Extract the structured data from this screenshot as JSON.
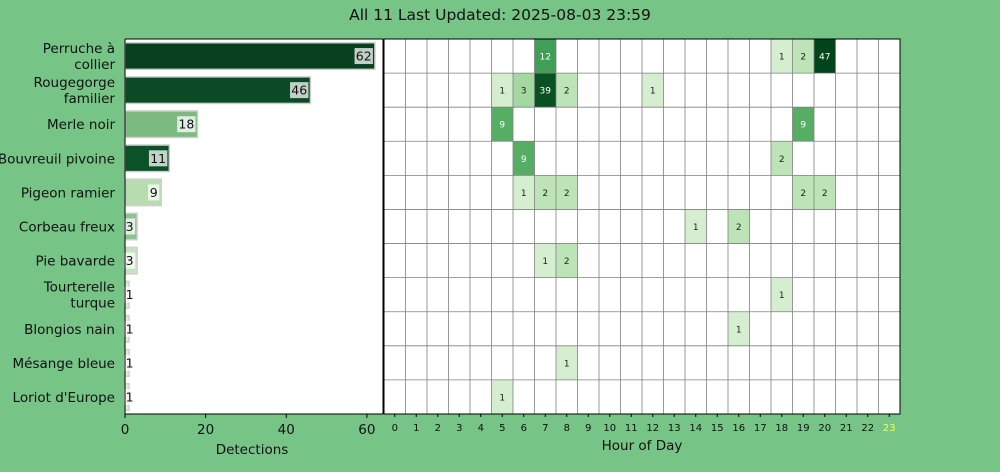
{
  "title": "All 11 Last Updated: 2025-08-03 23:59",
  "chart_data": [
    {
      "type": "bar",
      "orientation": "horizontal",
      "categories": [
        "Perruche à\ncollier",
        "Rougegorge\nfamilier",
        "Merle noir",
        "Bouvreuil pivoine",
        "Pigeon ramier",
        "Corbeau freux",
        "Pie bavarde",
        "Tourterelle\nturque",
        "Blongios nain",
        "Mésange bleue",
        "Loriot d'Europe"
      ],
      "values": [
        62,
        46,
        18,
        11,
        9,
        3,
        3,
        1,
        1,
        1,
        1
      ],
      "xlabel": "Detections",
      "xlim": [
        0,
        64
      ],
      "xticks": [
        0,
        20,
        40,
        60
      ],
      "colors": [
        "#08411f",
        "#0a4a25",
        "#7dba82",
        "#0c5229",
        "#b6dcb0",
        "#8cc48f",
        "#c4e4be",
        "#d8efd2",
        "#d8efd2",
        "#d8efd2",
        "#d8efd2"
      ]
    },
    {
      "type": "heatmap",
      "xlabel": "Hour of Day",
      "hours": [
        "0",
        "1",
        "2",
        "3",
        "4",
        "5",
        "6",
        "7",
        "8",
        "9",
        "10",
        "11",
        "12",
        "13",
        "14",
        "15",
        "16",
        "17",
        "18",
        "19",
        "20",
        "21",
        "22",
        "23"
      ],
      "highlight_hour": "23",
      "highlight_color": "#ffff33",
      "cells": [
        [
          0,
          7,
          12
        ],
        [
          0,
          18,
          1
        ],
        [
          0,
          19,
          2
        ],
        [
          0,
          20,
          47
        ],
        [
          1,
          5,
          1
        ],
        [
          1,
          6,
          3
        ],
        [
          1,
          7,
          39
        ],
        [
          1,
          8,
          2
        ],
        [
          1,
          12,
          1
        ],
        [
          2,
          5,
          9
        ],
        [
          2,
          19,
          9
        ],
        [
          3,
          6,
          9
        ],
        [
          3,
          18,
          2
        ],
        [
          4,
          6,
          1
        ],
        [
          4,
          7,
          2
        ],
        [
          4,
          8,
          2
        ],
        [
          4,
          19,
          2
        ],
        [
          4,
          20,
          2
        ],
        [
          5,
          14,
          1
        ],
        [
          5,
          16,
          2
        ],
        [
          6,
          7,
          1
        ],
        [
          6,
          8,
          2
        ],
        [
          7,
          18,
          1
        ],
        [
          8,
          16,
          1
        ],
        [
          9,
          8,
          1
        ],
        [
          10,
          5,
          1
        ]
      ]
    }
  ]
}
